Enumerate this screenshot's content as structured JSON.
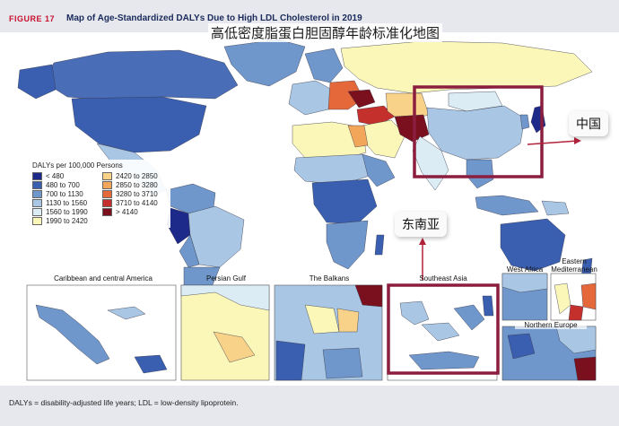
{
  "header": {
    "figure_label": "FIGURE 17",
    "figure_title": "Map of Age-Standardized DALYs Due to High LDL Cholesterol in 2019",
    "cn_title": "高低密度脂蛋白胆固醇年龄标准化地图"
  },
  "legend": {
    "title": "DALYs per 100,000 Persons",
    "items": [
      {
        "label": "< 480",
        "color": "#1d2a8a"
      },
      {
        "label": "480  to  700",
        "color": "#3a5fb0"
      },
      {
        "label": "700  to  1130",
        "color": "#6f97cc"
      },
      {
        "label": "1130  to  1560",
        "color": "#a9c7e4"
      },
      {
        "label": "1560  to  1990",
        "color": "#dcecf4"
      },
      {
        "label": "1990  to  2420",
        "color": "#fbf7b8"
      },
      {
        "label": "2420  to  2850",
        "color": "#f9d28a"
      },
      {
        "label": "2850  to  3280",
        "color": "#f2a65a"
      },
      {
        "label": "3280  to  3710",
        "color": "#e4683a"
      },
      {
        "label": "3710  to  4140",
        "color": "#c4302b"
      },
      {
        "label": "> 4140",
        "color": "#7a0f1e"
      }
    ]
  },
  "insets": {
    "caribbean": "Caribbean and central America",
    "persian_gulf": "Persian Gulf",
    "balkans": "The Balkans",
    "southeast_asia": "Southeast Asia",
    "west_africa": "West Africa",
    "eastern_med": "Eastern Mediterranean",
    "northern_europe": "Northern Europe"
  },
  "annotations": {
    "china_label": "中国",
    "sea_label": "东南亚",
    "highlight_color": "#8b1e3f"
  },
  "footer": {
    "note": "DALYs = disability-adjusted life years; LDL = low-density lipoprotein."
  }
}
